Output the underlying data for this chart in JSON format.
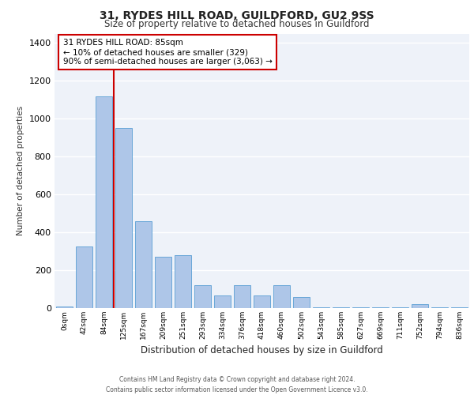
{
  "title": "31, RYDES HILL ROAD, GUILDFORD, GU2 9SS",
  "subtitle": "Size of property relative to detached houses in Guildford",
  "xlabel": "Distribution of detached houses by size in Guildford",
  "ylabel": "Number of detached properties",
  "categories": [
    "0sqm",
    "42sqm",
    "84sqm",
    "125sqm",
    "167sqm",
    "209sqm",
    "251sqm",
    "293sqm",
    "334sqm",
    "376sqm",
    "418sqm",
    "460sqm",
    "502sqm",
    "543sqm",
    "585sqm",
    "627sqm",
    "669sqm",
    "711sqm",
    "752sqm",
    "794sqm",
    "836sqm"
  ],
  "values": [
    10,
    325,
    1120,
    950,
    460,
    270,
    280,
    120,
    65,
    120,
    65,
    120,
    60,
    5,
    5,
    5,
    5,
    5,
    20,
    5,
    5
  ],
  "bar_color": "#aec6e8",
  "bar_edge_color": "#5a9fd4",
  "background_color": "#eef2f9",
  "grid_color": "#ffffff",
  "red_line_index": 2,
  "annotation_text": "31 RYDES HILL ROAD: 85sqm\n← 10% of detached houses are smaller (329)\n90% of semi-detached houses are larger (3,063) →",
  "annotation_box_color": "#ffffff",
  "annotation_box_edge_color": "#cc0000",
  "ylim": [
    0,
    1450
  ],
  "yticks": [
    0,
    200,
    400,
    600,
    800,
    1000,
    1200,
    1400
  ],
  "footer_line1": "Contains HM Land Registry data © Crown copyright and database right 2024.",
  "footer_line2": "Contains public sector information licensed under the Open Government Licence v3.0.",
  "title_fontsize": 10,
  "subtitle_fontsize": 8.5,
  "ylabel_fontsize": 7.5,
  "xlabel_fontsize": 8.5,
  "ytick_fontsize": 8,
  "xtick_fontsize": 6.5,
  "footer_fontsize": 5.5
}
